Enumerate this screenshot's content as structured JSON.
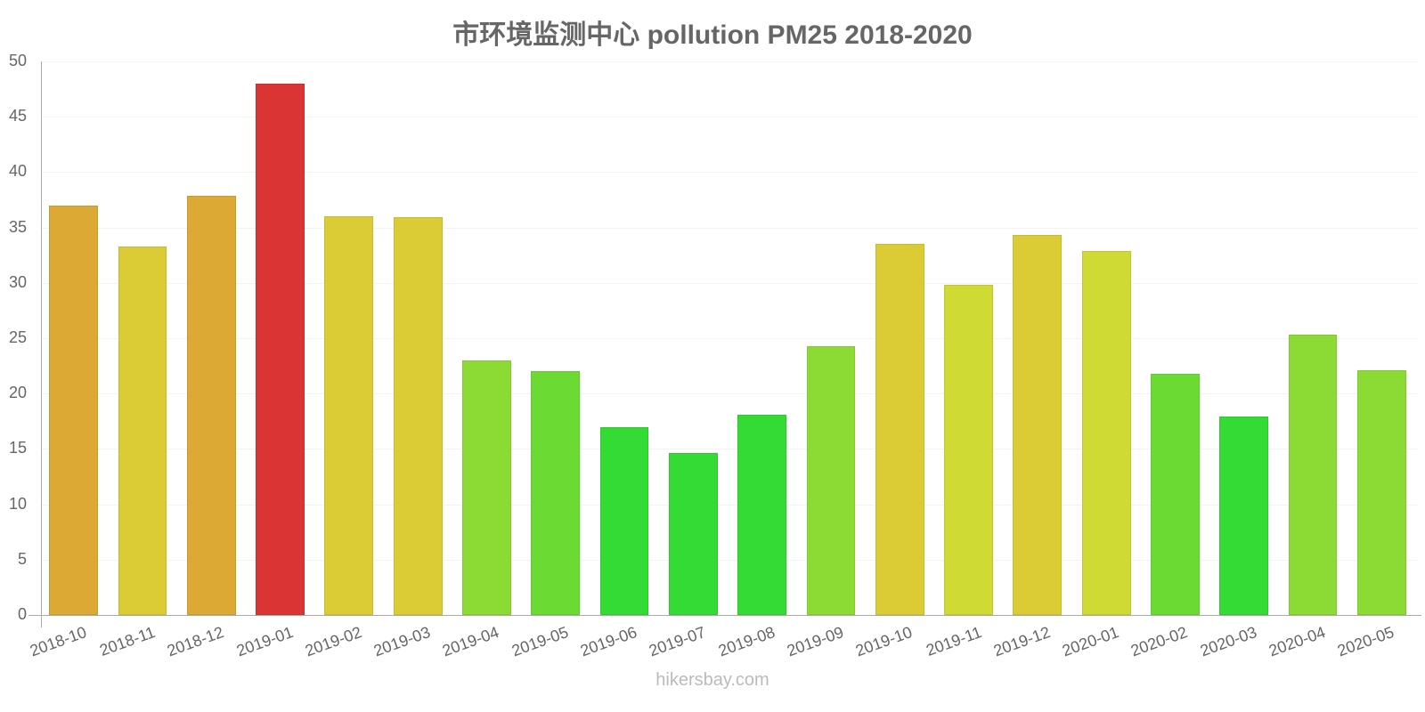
{
  "title": "市环境监测中心 pollution PM25 2018-2020",
  "watermark": "hikersbay.com",
  "chart_data": {
    "type": "bar",
    "title": "市环境监测中心 pollution PM25 2018-2020",
    "xlabel": "",
    "ylabel": "",
    "ylim": [
      0,
      50
    ],
    "yticks": [
      0,
      5,
      10,
      15,
      20,
      25,
      30,
      35,
      40,
      45,
      50
    ],
    "grid": true,
    "legend": null,
    "categories": [
      "2018-10",
      "2018-11",
      "2018-12",
      "2019-01",
      "2019-02",
      "2019-03",
      "2019-04",
      "2019-05",
      "2019-06",
      "2019-07",
      "2019-08",
      "2019-09",
      "2019-10",
      "2019-11",
      "2019-12",
      "2020-01",
      "2020-02",
      "2020-03",
      "2020-04",
      "2020-05"
    ],
    "values": [
      37.0,
      33.3,
      37.9,
      48.0,
      36.0,
      35.9,
      23.0,
      22.0,
      17.0,
      14.6,
      18.1,
      24.3,
      33.5,
      29.8,
      34.3,
      32.9,
      21.8,
      17.9,
      25.3,
      22.1
    ],
    "colors": [
      "#dba934",
      "#dbcb34",
      "#dba934",
      "#db3434",
      "#dbcb34",
      "#dbcb34",
      "#8cdb34",
      "#6bdb34",
      "#34db34",
      "#34db34",
      "#34db34",
      "#8cdb34",
      "#dbcb34",
      "#cfdb34",
      "#dbcb34",
      "#cfdb34",
      "#6bdb34",
      "#34db34",
      "#8cdb34",
      "#8cdb34"
    ]
  }
}
